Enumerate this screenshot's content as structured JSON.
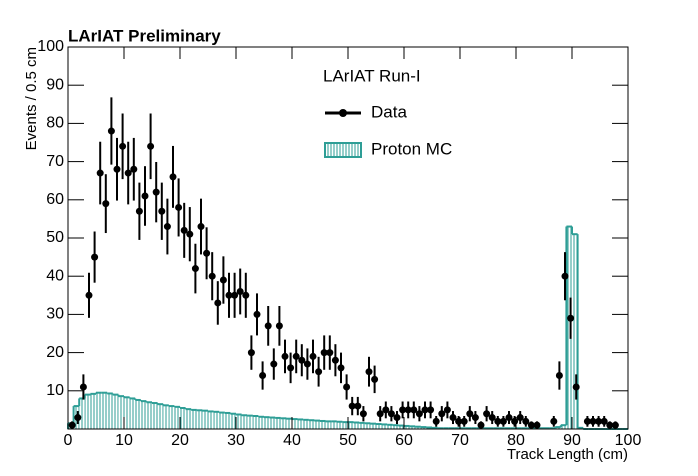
{
  "chart_data": {
    "type": "histogram",
    "title": "LArIAT Preliminary",
    "x_label": "Track Length (cm)",
    "y_label": "Events / 0.5 cm",
    "legend_title": "LArIAT Run-I",
    "xlim": [
      0,
      100
    ],
    "xticks": [
      0,
      10,
      20,
      30,
      40,
      50,
      60,
      70,
      80,
      90,
      100
    ],
    "ylim": [
      0,
      100
    ],
    "yticks": [
      10,
      20,
      30,
      40,
      50,
      60,
      70,
      80,
      90,
      100
    ],
    "series": [
      {
        "name": "Data",
        "color": "#000000",
        "x": [
          0.75,
          1.75,
          2.75,
          3.75,
          4.75,
          5.75,
          6.75,
          7.75,
          8.75,
          9.75,
          10.75,
          11.75,
          12.75,
          13.75,
          14.75,
          15.75,
          16.75,
          17.75,
          18.75,
          19.75,
          20.75,
          21.75,
          22.75,
          23.75,
          24.75,
          25.75,
          26.75,
          27.75,
          28.75,
          29.75,
          30.75,
          31.75,
          32.75,
          33.75,
          34.75,
          35.75,
          36.75,
          37.75,
          38.75,
          39.75,
          40.75,
          41.75,
          42.75,
          43.75,
          44.75,
          45.75,
          46.75,
          47.75,
          48.75,
          49.75,
          50.75,
          51.75,
          52.75,
          53.75,
          54.75,
          55.75,
          56.75,
          57.75,
          58.75,
          59.75,
          60.75,
          61.75,
          62.75,
          63.75,
          64.75,
          65.75,
          66.75,
          67.75,
          68.75,
          69.75,
          70.75,
          71.75,
          72.75,
          73.75,
          74.75,
          75.75,
          76.75,
          77.75,
          78.75,
          79.75,
          80.75,
          81.75,
          82.75,
          83.75,
          86.75,
          87.75,
          88.75,
          89.75,
          90.75,
          92.75,
          93.75,
          94.75,
          95.75,
          96.75,
          97.75
        ],
        "values": [
          1,
          3,
          11,
          35,
          45,
          67,
          59,
          78,
          68,
          74,
          67,
          68,
          57,
          61,
          74,
          62,
          57,
          53,
          66,
          58,
          52,
          51,
          42,
          53,
          46,
          40,
          33,
          39,
          35,
          35,
          36,
          35,
          20,
          30,
          14,
          27,
          17,
          27,
          19,
          16,
          19,
          18,
          17,
          19,
          15,
          20,
          20,
          18,
          16,
          11,
          6,
          6,
          4,
          15,
          13,
          4,
          5,
          4,
          3,
          5,
          5,
          5,
          4,
          5,
          5,
          2,
          4,
          5,
          3,
          2,
          2,
          4,
          3,
          1,
          4,
          3,
          2,
          2,
          3,
          2,
          3,
          2,
          1,
          1,
          2,
          14,
          40,
          29,
          11,
          2,
          2,
          2,
          2,
          1,
          1
        ],
        "errors": [
          1,
          1.7,
          3.3,
          5.9,
          6.7,
          8.2,
          7.7,
          8.8,
          8.2,
          8.6,
          8.2,
          8.2,
          7.5,
          7.8,
          8.6,
          7.9,
          7.5,
          7.3,
          8.1,
          7.6,
          7.2,
          7.1,
          6.5,
          7.3,
          6.8,
          6.3,
          5.7,
          6.2,
          5.9,
          5.9,
          6,
          5.9,
          4.5,
          5.5,
          3.7,
          5.2,
          4.1,
          5.2,
          4.4,
          4,
          4.4,
          4.2,
          4.1,
          4.4,
          3.9,
          4.5,
          4.5,
          4.2,
          4,
          3.3,
          2.4,
          2.4,
          2,
          3.9,
          3.6,
          2,
          2.2,
          2,
          1.7,
          2.2,
          2.2,
          2.2,
          2,
          2.2,
          2.2,
          1.4,
          2,
          2.2,
          1.7,
          1.4,
          1.4,
          2,
          1.7,
          1,
          2,
          1.7,
          1.4,
          1.4,
          1.7,
          1.4,
          1.7,
          1.4,
          1,
          1,
          1.4,
          3.7,
          6.3,
          5.4,
          3.3,
          1.4,
          1.4,
          1.4,
          1.4,
          1,
          1
        ]
      },
      {
        "name": "Proton MC",
        "color": "#2e9e96",
        "bins": [
          0,
          1,
          2,
          3,
          4,
          5,
          6,
          7,
          8,
          9,
          10,
          11,
          12,
          13,
          14,
          15,
          16,
          17,
          18,
          19,
          20,
          21,
          22,
          23,
          24,
          25,
          26,
          27,
          28,
          29,
          30,
          31,
          32,
          33,
          34,
          35,
          36,
          37,
          38,
          39,
          40,
          41,
          42,
          43,
          44,
          45,
          46,
          47,
          48,
          49,
          50,
          51,
          52,
          53,
          54,
          55,
          56,
          57,
          58,
          59,
          60,
          61,
          62,
          63,
          64,
          65,
          66,
          67,
          68,
          69,
          70,
          71,
          72,
          73,
          74,
          75,
          76,
          77,
          78,
          79,
          80,
          81,
          82,
          83,
          84,
          85,
          86,
          87,
          88,
          89,
          90,
          91,
          92,
          93,
          94,
          95,
          96,
          97,
          98,
          99,
          100
        ],
        "values": [
          1.5,
          6,
          8,
          9,
          9.2,
          9.5,
          9.5,
          9.3,
          9,
          8.6,
          8.3,
          8,
          7.6,
          7.3,
          7,
          6.8,
          6.5,
          6.2,
          6,
          5.8,
          5.5,
          5.2,
          5,
          4.9,
          4.8,
          4.6,
          4.5,
          4.3,
          4.2,
          4,
          3.8,
          3.6,
          3.5,
          3.4,
          3.2,
          3.1,
          3,
          2.9,
          2.8,
          2.7,
          2.6,
          2.5,
          2.4,
          2.3,
          2.2,
          2.1,
          2,
          2,
          1.9,
          1.8,
          1.8,
          1.7,
          1.6,
          1.5,
          1.4,
          1.3,
          1.2,
          1.1,
          1,
          0.9,
          0.8,
          0.7,
          0.6,
          0.5,
          0.4,
          0.3,
          0.2,
          0.2,
          0.2,
          0.2,
          0.2,
          0.2,
          0.2,
          0.2,
          0.2,
          0.2,
          0.2,
          0.2,
          0.2,
          0.2,
          0.2,
          0.2,
          0.2,
          0.2,
          0.2,
          0.2,
          0.2,
          0.5,
          1,
          53,
          51,
          0.3,
          0,
          0,
          0,
          0,
          0,
          0,
          0,
          0
        ]
      }
    ]
  }
}
